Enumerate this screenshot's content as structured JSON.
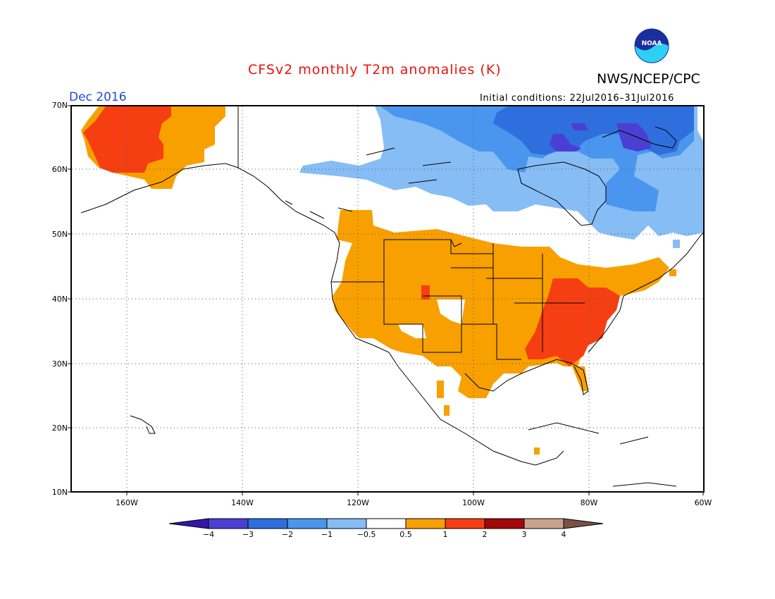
{
  "title": "CFSv2 monthly T2m anomalies (K)",
  "agency": "NWS/NCEP/CPC",
  "logo_text": "NOAA",
  "period": "Dec 2016",
  "initial_conditions": "Initial conditions: 22Jul2016–31Jul2016",
  "lat_labels": [
    "70N",
    "60N",
    "50N",
    "40N",
    "30N",
    "20N",
    "10N"
  ],
  "lon_labels": [
    "160W",
    "140W",
    "120W",
    "100W",
    "80W",
    "60W"
  ],
  "colorbar": {
    "labels": [
      "−4",
      "−3",
      "−2",
      "−1",
      "−0.5",
      "0.5",
      "1",
      "2",
      "3",
      "4"
    ],
    "colors": [
      "#3516a8",
      "#4b3fd3",
      "#2f6fdd",
      "#4a96ee",
      "#86bdf5",
      "#ffffff",
      "#f8a000",
      "#f53f12",
      "#a30808",
      "#c9a28e",
      "#7a5244"
    ]
  },
  "colors": {
    "title": "#e8130e",
    "period": "#1f4bd8",
    "warm": "#f8a000",
    "hot": "#f53f12",
    "cool_light": "#86bdf5",
    "cool_mid": "#4a96ee",
    "cool_dark": "#2f6fdd",
    "cold": "#4b3fd3"
  }
}
